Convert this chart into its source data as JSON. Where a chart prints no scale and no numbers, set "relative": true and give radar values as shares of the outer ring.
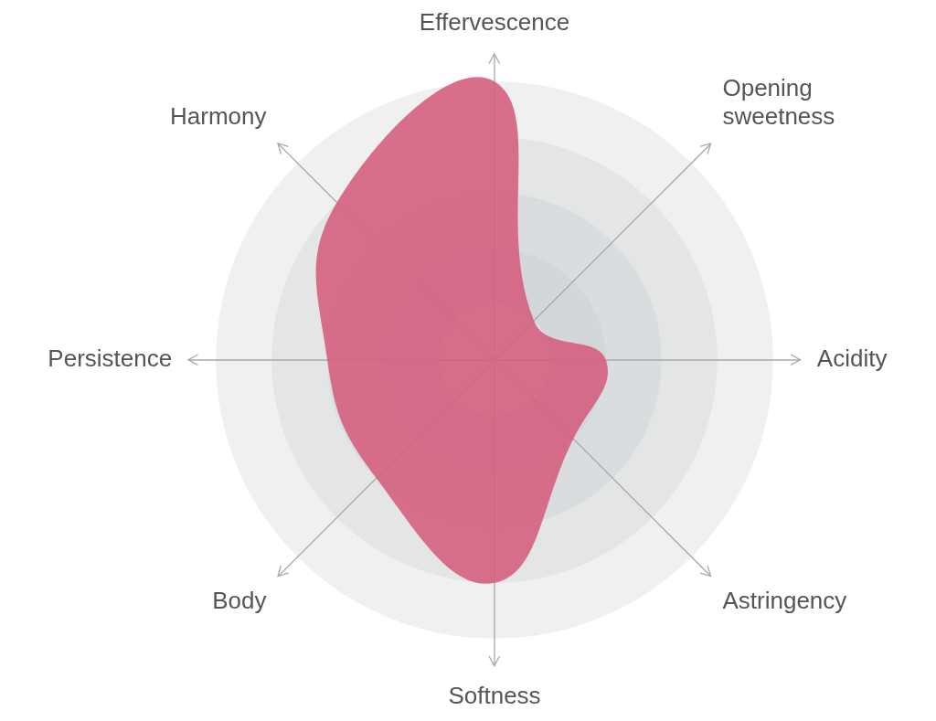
{
  "chart_data": {
    "type": "radar",
    "relative": true,
    "grid": true,
    "marker": "none",
    "categories": [
      "Effervescence",
      "Opening sweetness",
      "Acidity",
      "Astringency",
      "Softness",
      "Body",
      "Persistence",
      "Harmony"
    ],
    "series": [
      {
        "color": "#d4607f",
        "values": [
          1,
          0.2,
          0.4,
          0.4,
          0.8,
          0.6,
          0.6,
          0.8
        ]
      }
    ]
  }
}
